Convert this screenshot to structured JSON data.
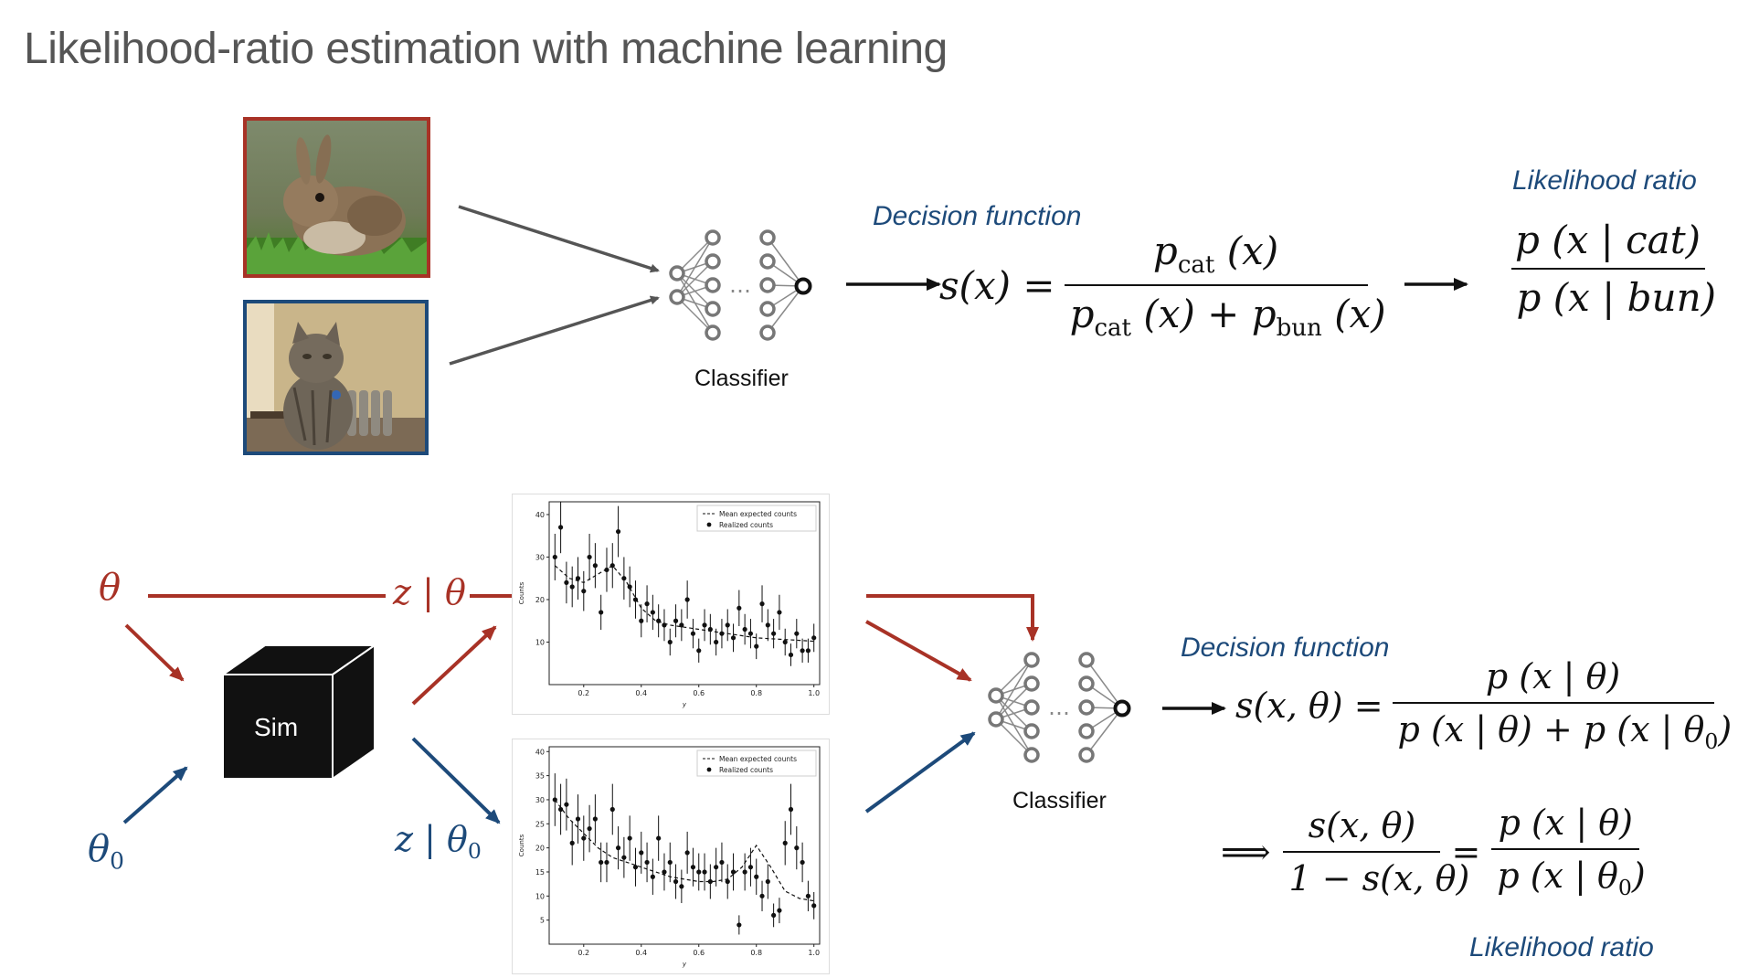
{
  "title": "Likelihood-ratio estimation with machine learning",
  "top": {
    "decision_label": "Decision function",
    "likelihood_label": "Likelihood ratio",
    "classifier_label": "Classifier",
    "ellipsis": "…",
    "s_of_x": "s(x) =",
    "numerator": {
      "p": "p",
      "sub": "cat",
      "arg": "(x)"
    },
    "denominator": {
      "p1": "p",
      "sub1": "cat",
      "arg1": "(x) +",
      "p2": "p",
      "sub2": "bun",
      "arg2": "(x)"
    },
    "lr_num": "p (x | cat)",
    "lr_den": "p (x | bun)",
    "arrow": "⟶"
  },
  "bottom": {
    "theta": "θ",
    "theta0_base": "θ",
    "theta0_sub": "0",
    "z_theta": "z | θ",
    "z_theta0_base": "z | θ",
    "z_theta0_sub": "0",
    "sim_label": "Sim",
    "classifier_label": "Classifier",
    "ellipsis": "…",
    "decision_label": "Decision function",
    "likelihood_label": "Likelihood ratio",
    "s_lhs": "s(x, θ) =",
    "s_num": "p (x | θ)",
    "s_den_part1": "p (x | θ) + p (x | θ",
    "s_den_sub": "0",
    "s_den_close": ")",
    "implies": "⟹",
    "ratio_num": "s(x, θ)",
    "ratio_den": "1 − s(x, θ)",
    "equals": "=",
    "lr_num": "p (x | θ)",
    "lr_den_part": "p (x | θ",
    "lr_den_sub": "0",
    "lr_den_close": ")",
    "arrow": "→"
  },
  "colors": {
    "red": "#a83226",
    "blue": "#1d4a7a",
    "title_gray": "#555555"
  },
  "plots": {
    "legend_mean": "Mean expected counts",
    "legend_realized": "Realized counts",
    "ylabel": "Counts",
    "xlabel": "y",
    "top_yticks": [
      "10",
      "20",
      "30",
      "40"
    ],
    "bottom_yticks": [
      "5",
      "10",
      "15",
      "20",
      "25",
      "30",
      "35",
      "40"
    ],
    "xticks": [
      "0.2",
      "0.4",
      "0.6",
      "0.8",
      "1.0"
    ]
  },
  "chart_data": [
    {
      "type": "scatter",
      "title": "",
      "xlabel": "y",
      "ylabel": "Counts",
      "xlim": [
        0.08,
        1.02
      ],
      "ylim": [
        0,
        43
      ],
      "yticks": [
        10,
        20,
        30,
        40
      ],
      "xticks": [
        0.2,
        0.4,
        0.6,
        0.8,
        1.0
      ],
      "legend": "top-right",
      "series": [
        {
          "name": "Mean expected counts",
          "style": "dashed-line",
          "x": [
            0.1,
            0.15,
            0.2,
            0.25,
            0.3,
            0.35,
            0.4,
            0.45,
            0.5,
            0.55,
            0.6,
            0.65,
            0.7,
            0.75,
            0.8,
            0.85,
            0.9,
            0.95,
            1.0
          ],
          "y": [
            28,
            25,
            24,
            26,
            28,
            24,
            18,
            15,
            14,
            13.5,
            13,
            12.5,
            12,
            11.5,
            11,
            10.8,
            10.6,
            10.4,
            10.2
          ]
        },
        {
          "name": "Realized counts",
          "style": "points-with-errorbars",
          "x": [
            0.1,
            0.12,
            0.14,
            0.16,
            0.18,
            0.2,
            0.22,
            0.24,
            0.26,
            0.28,
            0.3,
            0.32,
            0.34,
            0.36,
            0.38,
            0.4,
            0.42,
            0.44,
            0.46,
            0.48,
            0.5,
            0.52,
            0.54,
            0.56,
            0.58,
            0.6,
            0.62,
            0.64,
            0.66,
            0.68,
            0.7,
            0.72,
            0.74,
            0.76,
            0.78,
            0.8,
            0.82,
            0.84,
            0.86,
            0.88,
            0.9,
            0.92,
            0.94,
            0.96,
            0.98,
            1.0
          ],
          "y": [
            30,
            37,
            24,
            23,
            25,
            22,
            30,
            28,
            17,
            27,
            28,
            36,
            25,
            23,
            20,
            15,
            19,
            17,
            15,
            14,
            10,
            15,
            14,
            20,
            12,
            8,
            14,
            13,
            10,
            12,
            14,
            11,
            18,
            13,
            12,
            9,
            19,
            14,
            12,
            17,
            10,
            7,
            12,
            8,
            8,
            11
          ]
        }
      ]
    },
    {
      "type": "scatter",
      "title": "",
      "xlabel": "y",
      "ylabel": "Counts",
      "xlim": [
        0.08,
        1.02
      ],
      "ylim": [
        0,
        41
      ],
      "yticks": [
        5,
        10,
        15,
        20,
        25,
        30,
        35,
        40
      ],
      "xticks": [
        0.2,
        0.4,
        0.6,
        0.8,
        1.0
      ],
      "legend": "top-right",
      "series": [
        {
          "name": "Mean expected counts",
          "style": "dashed-line",
          "x": [
            0.1,
            0.15,
            0.2,
            0.25,
            0.3,
            0.35,
            0.4,
            0.45,
            0.5,
            0.55,
            0.6,
            0.65,
            0.7,
            0.75,
            0.8,
            0.85,
            0.9,
            0.95,
            1.0
          ],
          "y": [
            30,
            26,
            23,
            20,
            18,
            17,
            16,
            15,
            14,
            13.5,
            13,
            13,
            13.5,
            16,
            20.5,
            16,
            11,
            9.5,
            9
          ]
        },
        {
          "name": "Realized counts",
          "style": "points-with-errorbars",
          "x": [
            0.1,
            0.12,
            0.14,
            0.16,
            0.18,
            0.2,
            0.22,
            0.24,
            0.26,
            0.28,
            0.3,
            0.32,
            0.34,
            0.36,
            0.38,
            0.4,
            0.42,
            0.44,
            0.46,
            0.48,
            0.5,
            0.52,
            0.54,
            0.56,
            0.58,
            0.6,
            0.62,
            0.64,
            0.66,
            0.68,
            0.7,
            0.72,
            0.74,
            0.76,
            0.78,
            0.8,
            0.82,
            0.84,
            0.86,
            0.88,
            0.9,
            0.92,
            0.94,
            0.96,
            0.98,
            1.0
          ],
          "y": [
            30,
            28,
            29,
            21,
            26,
            22,
            24,
            26,
            17,
            17,
            28,
            20,
            18,
            22,
            16,
            19,
            17,
            14,
            22,
            15,
            17,
            13,
            12,
            19,
            16,
            15,
            15,
            13,
            16,
            17,
            13,
            15,
            4,
            15,
            16,
            14,
            10,
            13,
            6,
            7,
            21,
            28,
            20,
            17,
            10,
            8
          ]
        }
      ]
    }
  ]
}
